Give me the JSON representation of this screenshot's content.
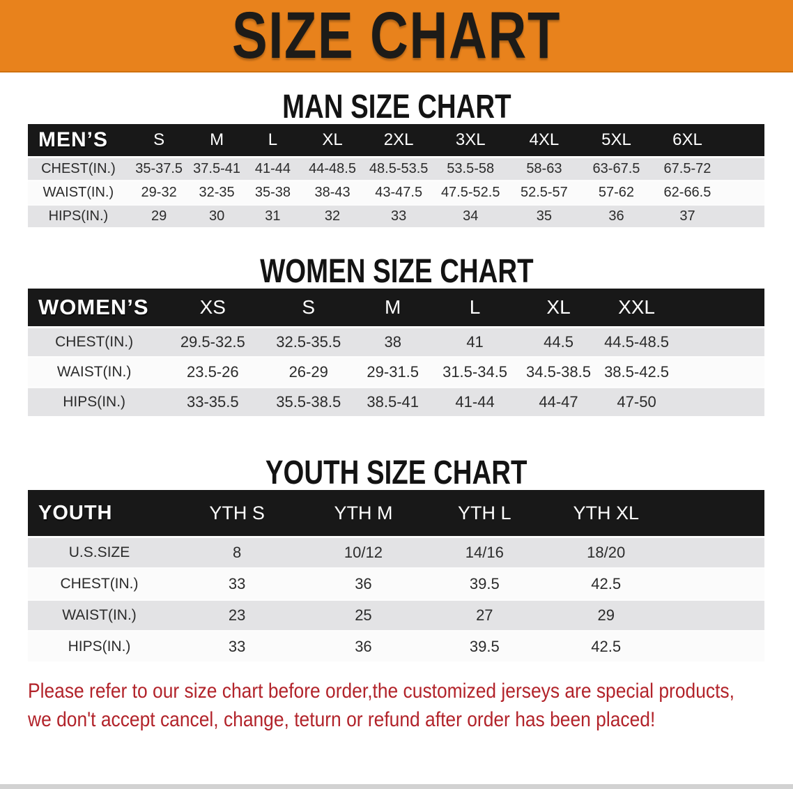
{
  "banner": {
    "title": "SIZE CHART"
  },
  "sections": [
    {
      "title": "MAN SIZE CHART",
      "table": {
        "label": "MEN’S",
        "sizes": [
          "S",
          "M",
          "L",
          "XL",
          "2XL",
          "3XL",
          "4XL",
          "5XL",
          "6XL"
        ],
        "rows": [
          {
            "label": "CHEST(IN.)",
            "values": [
              "35-37.5",
              "37.5-41",
              "41-44",
              "44-48.5",
              "48.5-53.5",
              "53.5-58",
              "58-63",
              "63-67.5",
              "67.5-72"
            ]
          },
          {
            "label": "WAIST(IN.)",
            "values": [
              "29-32",
              "32-35",
              "35-38",
              "38-43",
              "43-47.5",
              "47.5-52.5",
              "52.5-57",
              "57-62",
              "62-66.5"
            ]
          },
          {
            "label": "HIPS(IN.)",
            "values": [
              "29",
              "30",
              "31",
              "32",
              "33",
              "34",
              "35",
              "36",
              "37"
            ]
          }
        ]
      }
    },
    {
      "title": "WOMEN SIZE CHART",
      "table": {
        "label": "WOMEN’S",
        "sizes": [
          "XS",
          "S",
          "M",
          "L",
          "XL",
          "XXL"
        ],
        "rows": [
          {
            "label": "CHEST(IN.)",
            "values": [
              "29.5-32.5",
              "32.5-35.5",
              "38",
              "41",
              "44.5",
              "44.5-48.5"
            ]
          },
          {
            "label": "WAIST(IN.)",
            "values": [
              "23.5-26",
              "26-29",
              "29-31.5",
              "31.5-34.5",
              "34.5-38.5",
              "38.5-42.5"
            ]
          },
          {
            "label": "HIPS(IN.)",
            "values": [
              "33-35.5",
              "35.5-38.5",
              "38.5-41",
              "41-44",
              "44-47",
              "47-50"
            ]
          }
        ]
      }
    },
    {
      "title": "YOUTH SIZE CHART",
      "table": {
        "label": "YOUTH",
        "sizes": [
          "YTH S",
          "YTH M",
          "YTH L",
          "YTH XL"
        ],
        "rows": [
          {
            "label": "U.S.SIZE",
            "values": [
              "8",
              "10/12",
              "14/16",
              "18/20"
            ]
          },
          {
            "label": "CHEST(IN.)",
            "values": [
              "33",
              "36",
              "39.5",
              "42.5"
            ]
          },
          {
            "label": "WAIST(IN.)",
            "values": [
              "23",
              "25",
              "27",
              "29"
            ]
          },
          {
            "label": "HIPS(IN.)",
            "values": [
              "33",
              "36",
              "39.5",
              "42.5"
            ]
          }
        ]
      }
    }
  ],
  "disclaimer": {
    "line1": "Please refer to our size chart before order,the customized jerseys are special products,",
    "line2": "we don't accept cancel, change, teturn or refund after order has been placed!"
  },
  "colors": {
    "banner_orange": "#E8821C",
    "header_black": "#181818",
    "stripe_gray": "#E3E3E5",
    "disclaimer_red": "#B2232A"
  }
}
